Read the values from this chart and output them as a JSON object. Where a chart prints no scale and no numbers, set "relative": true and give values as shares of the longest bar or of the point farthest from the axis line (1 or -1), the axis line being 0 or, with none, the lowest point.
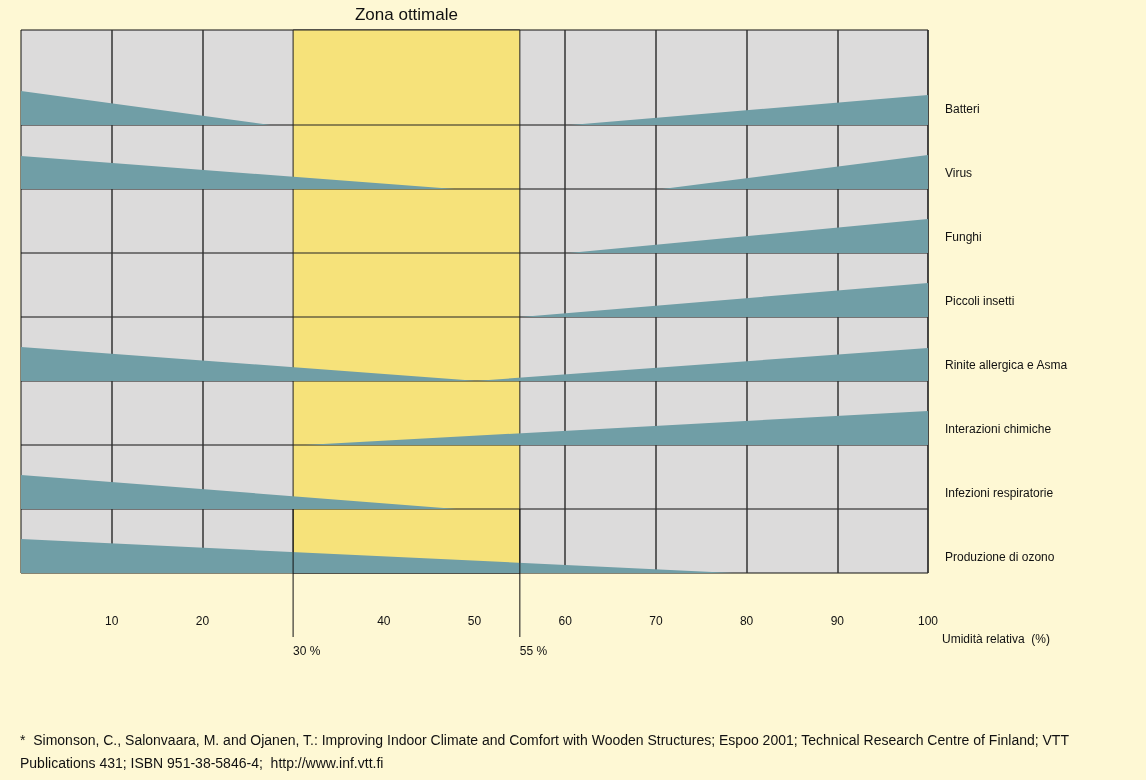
{
  "chart_data": [
    {
      "type": "area",
      "ylabel": "Batteri",
      "xlim": [
        0,
        100
      ],
      "xticks": [
        10,
        20,
        40,
        50,
        60,
        70,
        80,
        90,
        100
      ],
      "grid": "x",
      "relative": true,
      "tick_labels": false,
      "series": [
        {
          "color": "#709ea6",
          "x": [
            0,
            27.5
          ],
          "values": [
            1,
            0
          ]
        },
        {
          "color": "#709ea6",
          "x": [
            60.6,
            100
          ],
          "values": [
            0,
            0.88
          ]
        }
      ],
      "bands": [
        {
          "axis": "x",
          "from": 30,
          "to": 55,
          "label": "Zona ottimale",
          "color": "#f6e27a"
        }
      ]
    },
    {
      "type": "area",
      "ylabel": "Virus",
      "xlim": [
        0,
        100
      ],
      "xticks": [
        10,
        20,
        40,
        50,
        60,
        70,
        80,
        90,
        100
      ],
      "grid": "x",
      "relative": true,
      "tick_labels": false,
      "series": [
        {
          "color": "#709ea6",
          "x": [
            0,
            47.8
          ],
          "values": [
            0.97,
            0
          ]
        },
        {
          "color": "#709ea6",
          "x": [
            70.7,
            100
          ],
          "values": [
            0,
            1
          ]
        }
      ],
      "bands": [
        {
          "axis": "x",
          "from": 30,
          "to": 55,
          "color": "#f6e27a"
        }
      ]
    },
    {
      "type": "area",
      "ylabel": "Funghi",
      "xlim": [
        0,
        100
      ],
      "xticks": [
        10,
        20,
        40,
        50,
        60,
        70,
        80,
        90,
        100
      ],
      "grid": "x",
      "relative": true,
      "tick_labels": false,
      "series": [
        {
          "color": "#709ea6",
          "x": [
            60.4,
            100
          ],
          "values": [
            0,
            1
          ]
        }
      ],
      "bands": [
        {
          "axis": "x",
          "from": 30,
          "to": 55,
          "color": "#f6e27a"
        }
      ]
    },
    {
      "type": "area",
      "ylabel": "Piccoli insetti",
      "xlim": [
        0,
        100
      ],
      "xticks": [
        10,
        20,
        40,
        50,
        60,
        70,
        80,
        90,
        100
      ],
      "grid": "x",
      "relative": true,
      "tick_labels": false,
      "series": [
        {
          "color": "#709ea6",
          "x": [
            55.1,
            100
          ],
          "values": [
            0,
            1
          ]
        }
      ],
      "bands": [
        {
          "axis": "x",
          "from": 30,
          "to": 55,
          "color": "#f6e27a"
        }
      ]
    },
    {
      "type": "area",
      "ylabel": "Rinite allergica e Asma",
      "xlim": [
        0,
        100
      ],
      "xticks": [
        10,
        20,
        40,
        50,
        60,
        70,
        80,
        90,
        100
      ],
      "grid": "x",
      "relative": true,
      "tick_labels": false,
      "series": [
        {
          "color": "#709ea6",
          "x": [
            0,
            50.4
          ],
          "values": [
            1,
            0
          ]
        },
        {
          "color": "#709ea6",
          "x": [
            50,
            100
          ],
          "values": [
            0,
            0.97
          ]
        }
      ],
      "bands": [
        {
          "axis": "x",
          "from": 30,
          "to": 55,
          "color": "#f6e27a"
        }
      ]
    },
    {
      "type": "area",
      "ylabel": "Interazioni chimiche",
      "xlim": [
        0,
        100
      ],
      "xticks": [
        10,
        20,
        40,
        50,
        60,
        70,
        80,
        90,
        100
      ],
      "grid": "x",
      "relative": true,
      "tick_labels": false,
      "series": [
        {
          "color": "#709ea6",
          "x": [
            31.3,
            100
          ],
          "values": [
            0,
            1
          ]
        }
      ],
      "bands": [
        {
          "axis": "x",
          "from": 30,
          "to": 55,
          "color": "#f6e27a"
        }
      ]
    },
    {
      "type": "area",
      "ylabel": "Infezioni respiratorie",
      "xlim": [
        0,
        100
      ],
      "xticks": [
        10,
        20,
        40,
        50,
        60,
        70,
        80,
        90,
        100
      ],
      "grid": "x",
      "relative": true,
      "tick_labels": false,
      "series": [
        {
          "color": "#709ea6",
          "x": [
            0,
            48
          ],
          "values": [
            1,
            0
          ]
        }
      ],
      "bands": [
        {
          "axis": "x",
          "from": 30,
          "to": 55,
          "color": "#f6e27a"
        }
      ]
    },
    {
      "type": "area",
      "ylabel": "Produzione di ozono",
      "xlabel": "Umidità relativa  (%)",
      "xlim": [
        0,
        100
      ],
      "xticks": [
        10,
        20,
        40,
        50,
        60,
        70,
        80,
        90,
        100
      ],
      "grid": "x",
      "relative": true,
      "tick_labels": "x",
      "series": [
        {
          "color": "#709ea6",
          "x": [
            0,
            78.5
          ],
          "values": [
            1,
            0
          ]
        }
      ],
      "bands": [
        {
          "axis": "x",
          "from": 30,
          "to": 55,
          "color": "#f6e27a"
        }
      ],
      "ref_lines": [
        {
          "axis": "x",
          "value": 30,
          "label": "30 %"
        },
        {
          "axis": "x",
          "value": 55,
          "label": "55 %"
        }
      ],
      "annotations": [
        "*  Simonson, C., Salonvaara, M. and Ojanen, T.: Improving Indoor Climate and Comfort with Wooden Structures; Espoo 2001; Technical Research Centre of Finland; VTT Publications 431; ISBN 951-38-5846-4;  http://www.inf.vtt.fi"
      ]
    }
  ]
}
